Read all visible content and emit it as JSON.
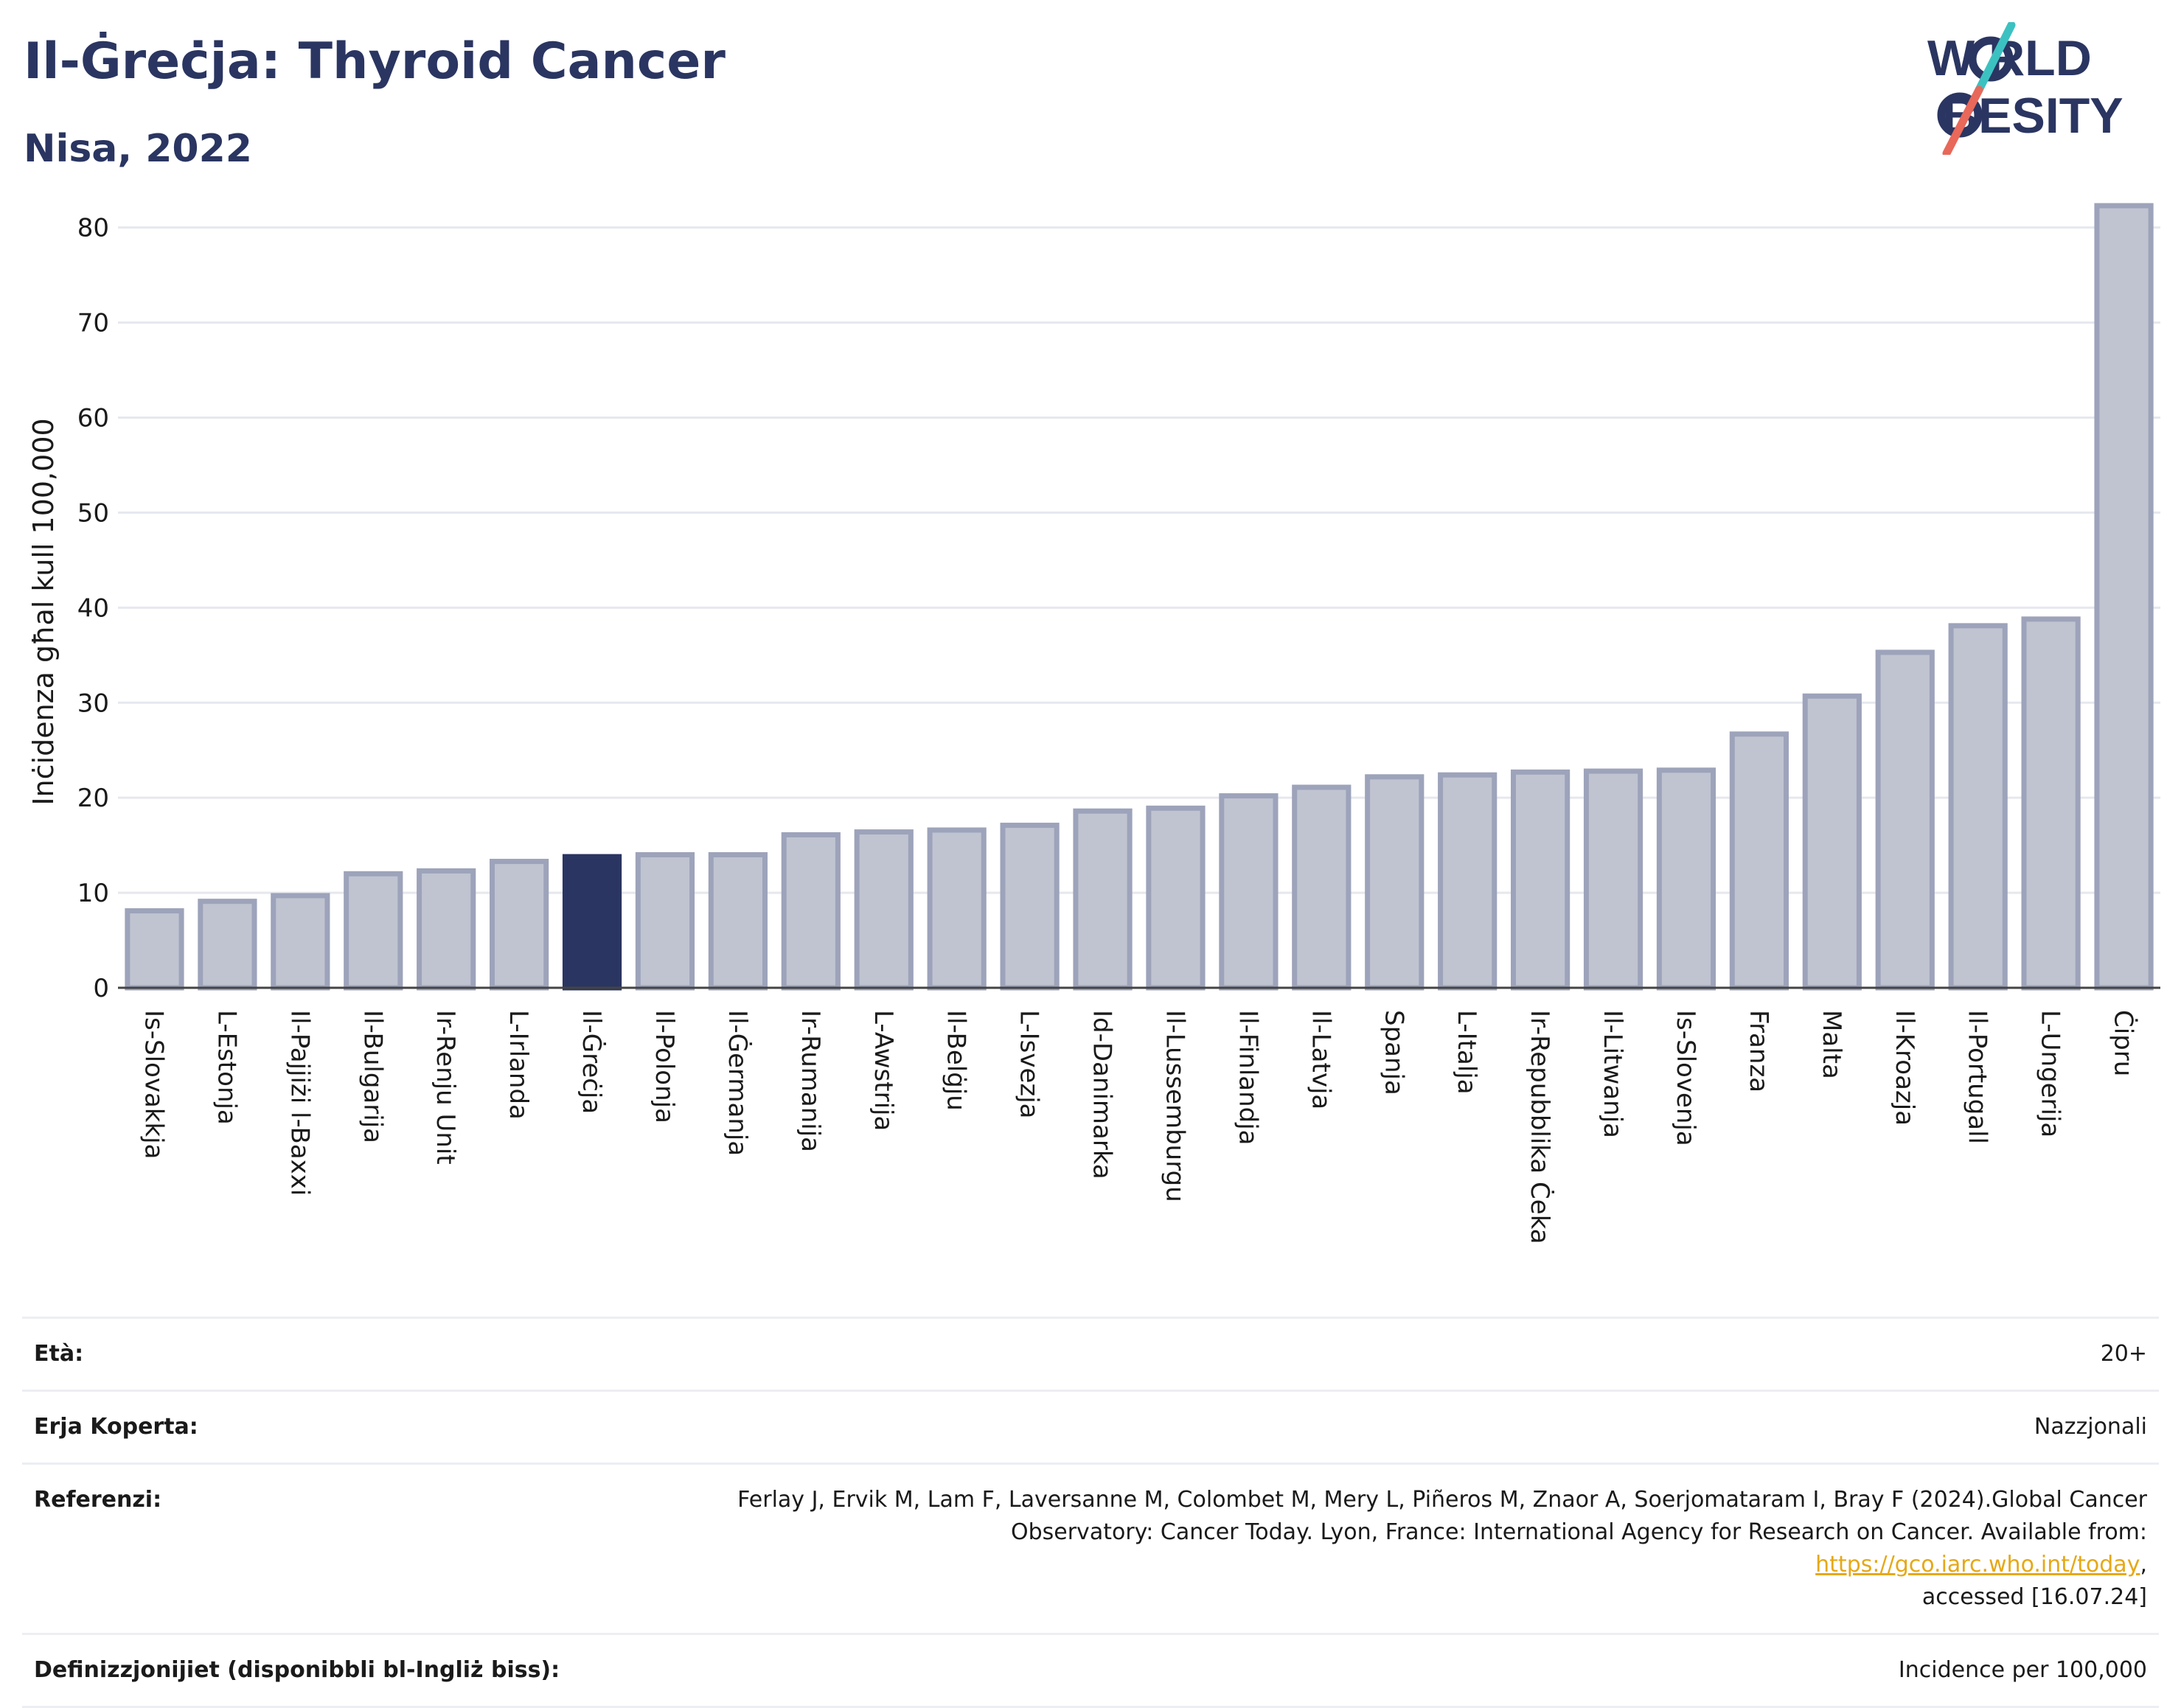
{
  "header": {
    "title": "Il-Ġreċja: Thyroid Cancer",
    "subtitle": "Nisa, 2022"
  },
  "logo": {
    "line1": "W RLD",
    "line2": "BESITY",
    "colors": {
      "text": "#2a3561",
      "slash_top": "#3cc1c1",
      "slash_bottom": "#e8685a"
    }
  },
  "chart_data": {
    "type": "bar",
    "ylabel": "Inċidenza għal kull 100,000",
    "xlabel": "",
    "ylim": [
      0,
      83
    ],
    "yticks": [
      0,
      10,
      20,
      30,
      40,
      50,
      60,
      70,
      80
    ],
    "grid": true,
    "categories": [
      "Is-Slovakkja",
      "L-Estonja",
      "Il-Pajjiżi l-Baxxi",
      "Il-Bulgarija",
      "Ir-Renju Unit",
      "L-Irlanda",
      "Il-Ġreċja",
      "Il-Polonja",
      "Il-Ġermanja",
      "Ir-Rumanija",
      "L-Awstrija",
      "Il-Belġju",
      "L-Isvezja",
      "Id-Danimarka",
      "Il-Lussemburgu",
      "Il-Finlandja",
      "Il-Latvja",
      "Spanja",
      "L-Italja",
      "Ir-Repubblika Ċeka",
      "Il-Litwanja",
      "Is-Slovenja",
      "Franza",
      "Malta",
      "Il-Kroazja",
      "Il-Portugall",
      "L-Ungerija",
      "Ċipru"
    ],
    "values": [
      8.1,
      9.1,
      9.7,
      12.0,
      12.3,
      13.3,
      13.8,
      14.0,
      14.0,
      16.1,
      16.4,
      16.6,
      17.1,
      18.6,
      18.9,
      20.2,
      21.1,
      22.2,
      22.4,
      22.7,
      22.8,
      22.9,
      26.7,
      30.7,
      35.3,
      38.1,
      38.8,
      82.3
    ],
    "highlight": "Il-Ġreċja",
    "colors": {
      "bar": "#c0c4d1",
      "bar_border": "#9da3ba",
      "highlight": "#2a3561",
      "grid": "#e6e8ee",
      "axis": "#444444"
    }
  },
  "info": {
    "age_label": "Età:",
    "age_value": "20+",
    "area_label": "Erja Koperta:",
    "area_value": "Nazzjonali",
    "ref_label": "Referenzi:",
    "ref_text_1": "Ferlay J, Ervik M, Lam F, Laversanne M, Colombet M, Mery L, Piñeros M, Znaor A, Soerjomataram I, Bray F (2024).Global Cancer",
    "ref_text_2": "Observatory: Cancer Today. Lyon, France: International Agency for Research on Cancer. Available from: ",
    "ref_link": "https://gco.iarc.who.int/today",
    "ref_text_3": ",",
    "ref_text_4": "accessed [16.07.24]",
    "def_label": "Definizzjonijiet (disponibbli bl-Ingliż biss):",
    "def_value": "Incidence per 100,000"
  }
}
